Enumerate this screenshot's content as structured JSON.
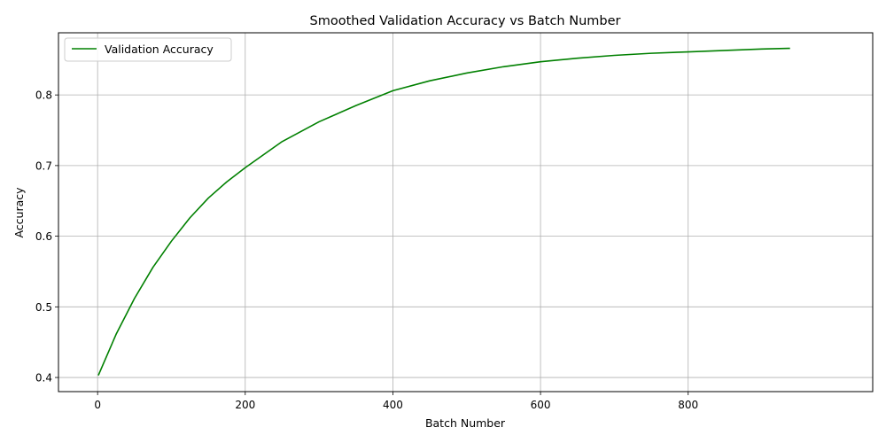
{
  "chart_data": {
    "type": "line",
    "title": "Smoothed Validation Accuracy vs Batch Number",
    "xlabel": "Batch Number",
    "ylabel": "Accuracy",
    "xlim": [
      -53,
      1050
    ],
    "ylim": [
      0.38,
      0.888
    ],
    "xticks": [
      0,
      200,
      400,
      600,
      800
    ],
    "xtick_labels": [
      "0",
      "200",
      "400",
      "600",
      "800"
    ],
    "yticks": [
      0.4,
      0.5,
      0.6,
      0.7,
      0.8
    ],
    "ytick_labels": [
      "0.4",
      "0.5",
      "0.6",
      "0.7",
      "0.8"
    ],
    "grid": true,
    "legend_position": "upper-left",
    "series": [
      {
        "name": "Validation Accuracy",
        "color": "#008000",
        "x": [
          1,
          25,
          50,
          75,
          100,
          125,
          150,
          175,
          200,
          250,
          300,
          350,
          400,
          450,
          500,
          550,
          600,
          650,
          700,
          750,
          800,
          850,
          900,
          938
        ],
        "y": [
          0.403,
          0.461,
          0.512,
          0.556,
          0.593,
          0.626,
          0.654,
          0.677,
          0.697,
          0.734,
          0.762,
          0.785,
          0.806,
          0.82,
          0.831,
          0.84,
          0.847,
          0.852,
          0.856,
          0.859,
          0.861,
          0.863,
          0.865,
          0.866
        ]
      }
    ]
  }
}
